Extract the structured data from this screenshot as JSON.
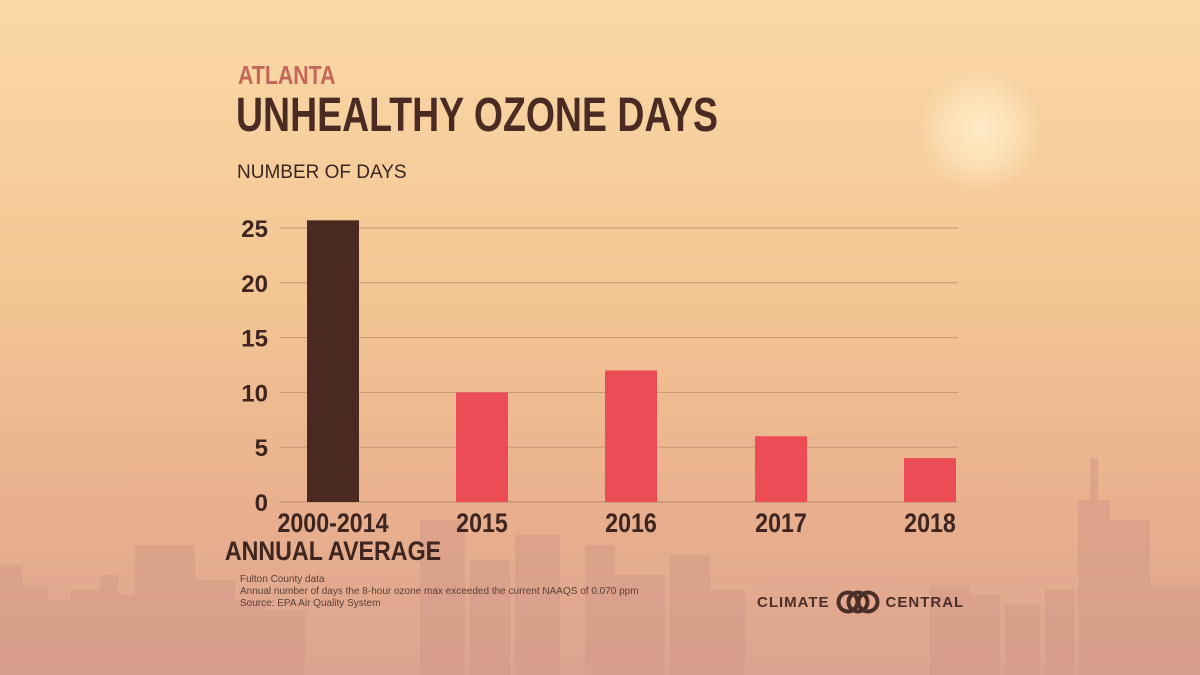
{
  "header": {
    "eyebrow": "ATLANTA",
    "title": "UNHEALTHY OZONE DAYS"
  },
  "chart_data": {
    "type": "bar",
    "title": "UNHEALTHY OZONE DAYS",
    "subtitle": "ATLANTA",
    "ylabel": "NUMBER OF DAYS",
    "xlabel": "",
    "categories": [
      [
        "2000-2014",
        "ANNUAL AVERAGE"
      ],
      [
        "2015"
      ],
      [
        "2016"
      ],
      [
        "2017"
      ],
      [
        "2018"
      ]
    ],
    "values": [
      25.7,
      10,
      12,
      6,
      4
    ],
    "ylim": [
      0,
      25
    ],
    "yticks": [
      0,
      5,
      10,
      15,
      20,
      25
    ],
    "grid": true,
    "colors": {
      "highlight_bar": "#4a2a20",
      "bar": "#ec4c55",
      "gridline": "#c6967c",
      "tick_text": "#3e2520"
    }
  },
  "footer": {
    "notes": [
      "Fulton County data",
      "Annual number of days the 8-hour ozone max exceeded the current NAAQS of 0.070 ppm",
      "Source: EPA Air Quality System"
    ],
    "brand_left": "CLIMATE",
    "brand_right": "CENTRAL",
    "logo_icon": "climate-central-logo-icon"
  }
}
